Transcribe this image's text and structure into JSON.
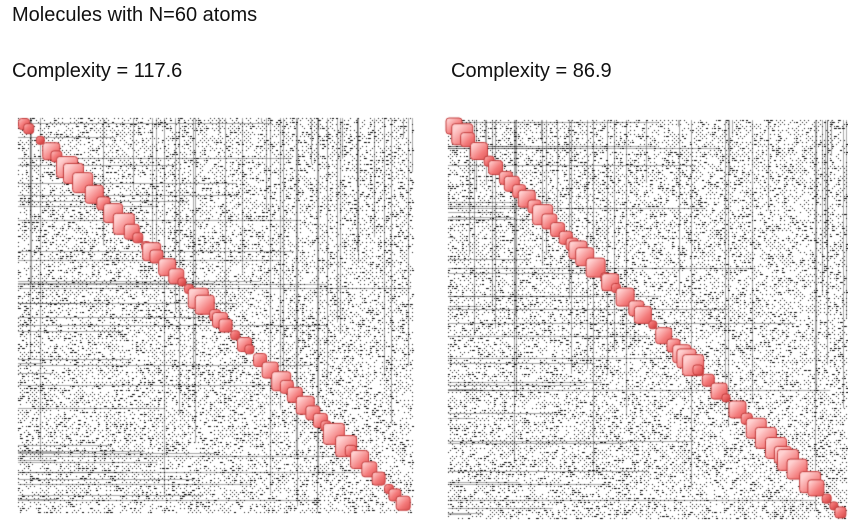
{
  "title": "Molecules with N=60 atoms",
  "panels": [
    {
      "label": "Complexity = 117.6",
      "accent": "#f06a6a"
    },
    {
      "label": "Complexity = 86.9",
      "accent": "#f06a6a"
    }
  ]
}
